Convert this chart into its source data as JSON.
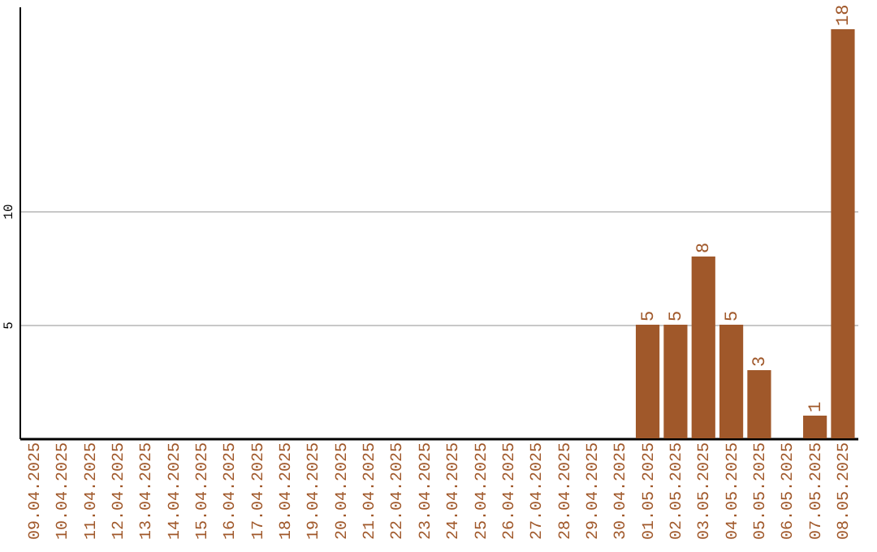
{
  "chart_data": {
    "type": "bar",
    "categories": [
      "09.04.2025",
      "10.04.2025",
      "11.04.2025",
      "12.04.2025",
      "13.04.2025",
      "14.04.2025",
      "15.04.2025",
      "16.04.2025",
      "17.04.2025",
      "18.04.2025",
      "19.04.2025",
      "20.04.2025",
      "21.04.2025",
      "22.04.2025",
      "23.04.2025",
      "24.04.2025",
      "25.04.2025",
      "26.04.2025",
      "27.04.2025",
      "28.04.2025",
      "29.04.2025",
      "30.04.2025",
      "01.05.2025",
      "02.05.2025",
      "03.05.2025",
      "04.05.2025",
      "05.05.2025",
      "06.05.2025",
      "07.05.2025",
      "08.05.2025"
    ],
    "values": [
      0,
      0,
      0,
      0,
      0,
      0,
      0,
      0,
      0,
      0,
      0,
      0,
      0,
      0,
      0,
      0,
      0,
      0,
      0,
      0,
      0,
      0,
      5,
      5,
      8,
      5,
      3,
      0,
      1,
      18
    ],
    "value_labels": [
      null,
      null,
      null,
      null,
      null,
      null,
      null,
      null,
      null,
      null,
      null,
      null,
      null,
      null,
      null,
      null,
      null,
      null,
      null,
      null,
      null,
      null,
      "5",
      "5",
      "8",
      "5",
      "3",
      null,
      "1",
      "18"
    ],
    "color": "#a0582a",
    "ylim": [
      0,
      19
    ],
    "yticks": [
      5,
      10
    ],
    "grid": "y"
  }
}
